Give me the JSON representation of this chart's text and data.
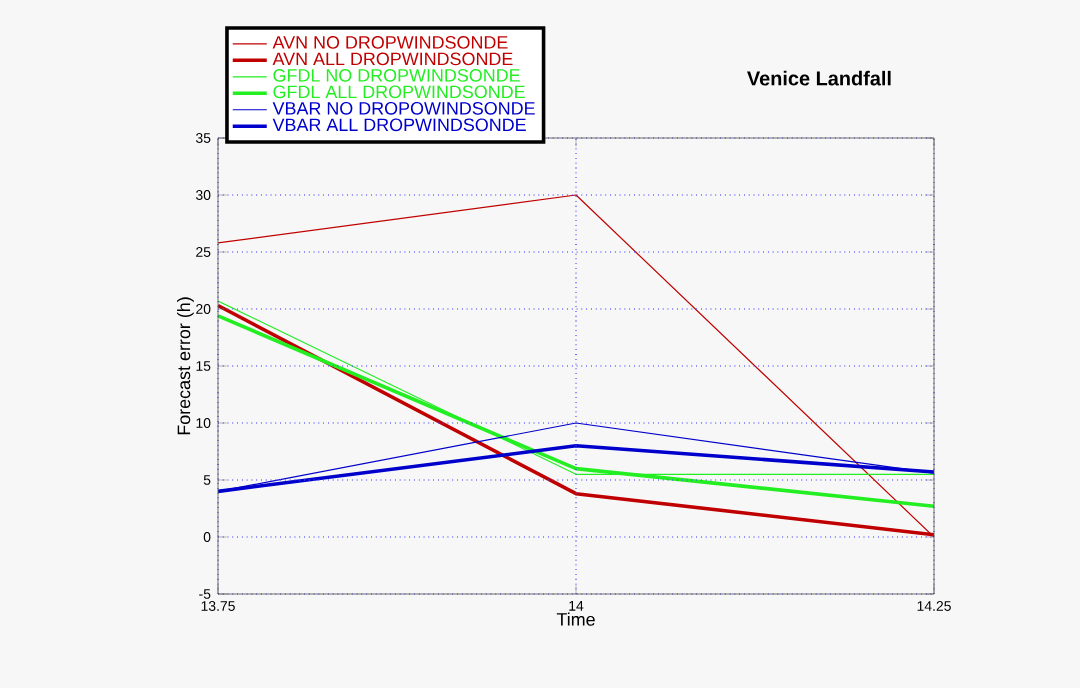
{
  "chart_data": {
    "type": "line",
    "title": "Venice Landfall",
    "xlabel": "Time",
    "ylabel": "Forecast error (h)",
    "x": [
      13.75,
      14,
      14.25
    ],
    "series": [
      {
        "name": "AVN NO DROPWINDSONDE",
        "color": "#c00000",
        "values": [
          25.8,
          30,
          0
        ]
      },
      {
        "name": "AVN ALL DROPWINDSONDE",
        "color": "#c00000",
        "values": [
          20.3,
          3.8,
          0.2
        ]
      },
      {
        "name": "GFDL NO DROPWINDSONDE",
        "color": "#22ee22",
        "values": [
          20.7,
          5.5,
          5.5
        ]
      },
      {
        "name": "GFDL ALL DROPWINDSONDE",
        "color": "#22ee22",
        "values": [
          19.4,
          6.0,
          2.7
        ]
      },
      {
        "name": "VBAR NO DROPOWINDSONDE",
        "color": "#0000cc",
        "values": [
          4.0,
          10.0,
          5.6
        ]
      },
      {
        "name": "VBAR ALL DROPWINDSONDE",
        "color": "#0000cc",
        "values": [
          4.0,
          8.0,
          5.7
        ]
      }
    ],
    "xlim": [
      13.75,
      14.25
    ],
    "xticks": [
      13.75,
      14,
      14.25
    ],
    "ylim": [
      -5,
      35
    ],
    "yticks": [
      -5,
      0,
      5,
      10,
      15,
      20,
      25,
      30,
      35
    ],
    "grid": true,
    "legend": "top left",
    "marker": "none",
    "line_style": "solid"
  }
}
